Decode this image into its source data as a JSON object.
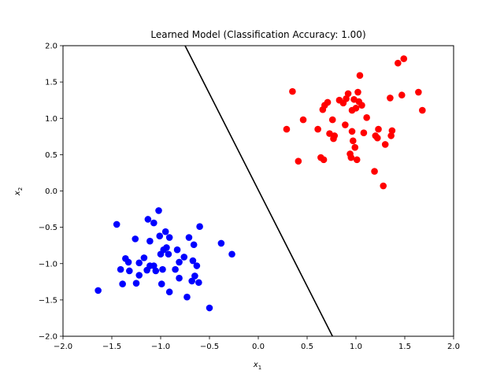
{
  "chart_data": {
    "type": "scatter",
    "title": "Learned Model (Classification Accuracy: 1.00)",
    "xlabel": "x",
    "xlabel_sub": "1",
    "ylabel": "x",
    "ylabel_sub": "2",
    "xlim": [
      -2.0,
      2.0
    ],
    "ylim": [
      -2.0,
      2.0
    ],
    "xticks": [
      "−2.0",
      "−1.5",
      "−1.0",
      "−0.5",
      "0.0",
      "0.5",
      "1.0",
      "1.5",
      "2.0"
    ],
    "yticks": [
      "−2.0",
      "−1.5",
      "−1.0",
      "−0.5",
      "0.0",
      "0.5",
      "1.0",
      "1.5",
      "2.0"
    ],
    "grid": false,
    "series": [
      {
        "color": "#0000ff",
        "points": [
          [
            -1.64,
            -1.37
          ],
          [
            -1.45,
            -0.46
          ],
          [
            -1.41,
            -1.08
          ],
          [
            -1.39,
            -1.28
          ],
          [
            -1.36,
            -0.93
          ],
          [
            -1.33,
            -0.98
          ],
          [
            -1.32,
            -1.1
          ],
          [
            -1.26,
            -0.66
          ],
          [
            -1.25,
            -1.27
          ],
          [
            -1.22,
            -0.99
          ],
          [
            -1.22,
            -1.16
          ],
          [
            -1.17,
            -0.92
          ],
          [
            -1.14,
            -1.09
          ],
          [
            -1.13,
            -0.39
          ],
          [
            -1.11,
            -1.03
          ],
          [
            -1.11,
            -0.69
          ],
          [
            -1.07,
            -1.03
          ],
          [
            -1.07,
            -0.44
          ],
          [
            -1.05,
            -1.1
          ],
          [
            -1.02,
            -0.27
          ],
          [
            -1.01,
            -0.62
          ],
          [
            -1.0,
            -0.87
          ],
          [
            -0.99,
            -1.28
          ],
          [
            -0.98,
            -1.08
          ],
          [
            -0.97,
            -0.81
          ],
          [
            -0.95,
            -0.56
          ],
          [
            -0.94,
            -0.78
          ],
          [
            -0.92,
            -0.87
          ],
          [
            -0.91,
            -0.64
          ],
          [
            -0.91,
            -1.39
          ],
          [
            -0.85,
            -1.08
          ],
          [
            -0.83,
            -0.81
          ],
          [
            -0.81,
            -1.2
          ],
          [
            -0.81,
            -0.98
          ],
          [
            -0.76,
            -0.91
          ],
          [
            -0.73,
            -1.46
          ],
          [
            -0.71,
            -0.64
          ],
          [
            -0.68,
            -1.24
          ],
          [
            -0.67,
            -0.96
          ],
          [
            -0.66,
            -0.74
          ],
          [
            -0.65,
            -1.17
          ],
          [
            -0.63,
            -1.03
          ],
          [
            -0.61,
            -1.26
          ],
          [
            -0.6,
            -0.49
          ],
          [
            -0.5,
            -1.61
          ],
          [
            -0.38,
            -0.72
          ],
          [
            -0.27,
            -0.87
          ]
        ]
      },
      {
        "color": "#ff0000",
        "points": [
          [
            0.29,
            0.85
          ],
          [
            0.35,
            1.37
          ],
          [
            0.41,
            0.41
          ],
          [
            0.46,
            0.98
          ],
          [
            0.61,
            0.85
          ],
          [
            0.64,
            0.46
          ],
          [
            0.66,
            1.12
          ],
          [
            0.67,
            0.43
          ],
          [
            0.68,
            1.18
          ],
          [
            0.71,
            1.22
          ],
          [
            0.73,
            0.79
          ],
          [
            0.76,
            0.98
          ],
          [
            0.77,
            0.72
          ],
          [
            0.78,
            0.76
          ],
          [
            0.83,
            1.25
          ],
          [
            0.87,
            1.21
          ],
          [
            0.89,
            0.91
          ],
          [
            0.9,
            1.27
          ],
          [
            0.92,
            1.34
          ],
          [
            0.94,
            0.51
          ],
          [
            0.95,
            0.46
          ],
          [
            0.96,
            1.11
          ],
          [
            0.96,
            0.82
          ],
          [
            0.97,
            0.69
          ],
          [
            0.98,
            1.26
          ],
          [
            0.99,
            0.6
          ],
          [
            1.0,
            1.14
          ],
          [
            1.01,
            0.43
          ],
          [
            1.02,
            1.36
          ],
          [
            1.03,
            1.23
          ],
          [
            1.04,
            1.59
          ],
          [
            1.06,
            1.18
          ],
          [
            1.08,
            0.8
          ],
          [
            1.11,
            1.01
          ],
          [
            1.19,
            0.27
          ],
          [
            1.2,
            0.76
          ],
          [
            1.22,
            0.73
          ],
          [
            1.23,
            0.85
          ],
          [
            1.28,
            0.07
          ],
          [
            1.3,
            0.64
          ],
          [
            1.35,
            1.28
          ],
          [
            1.36,
            0.76
          ],
          [
            1.37,
            0.83
          ],
          [
            1.43,
            1.76
          ],
          [
            1.47,
            1.32
          ],
          [
            1.49,
            1.82
          ],
          [
            1.64,
            1.36
          ],
          [
            1.68,
            1.11
          ]
        ]
      }
    ],
    "decision_boundary": {
      "color": "#000000",
      "points": [
        [
          -0.75,
          2.0
        ],
        [
          0.76,
          -2.0
        ]
      ]
    }
  }
}
